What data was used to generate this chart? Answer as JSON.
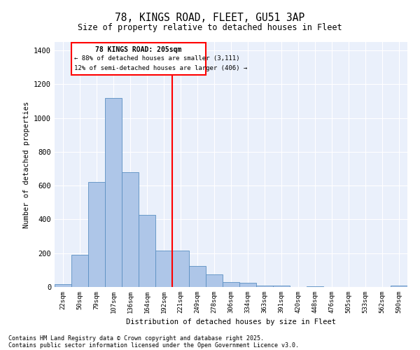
{
  "title1": "78, KINGS ROAD, FLEET, GU51 3AP",
  "title2": "Size of property relative to detached houses in Fleet",
  "xlabel": "Distribution of detached houses by size in Fleet",
  "ylabel": "Number of detached properties",
  "categories": [
    "22sqm",
    "50sqm",
    "79sqm",
    "107sqm",
    "136sqm",
    "164sqm",
    "192sqm",
    "221sqm",
    "249sqm",
    "278sqm",
    "306sqm",
    "334sqm",
    "363sqm",
    "391sqm",
    "420sqm",
    "448sqm",
    "476sqm",
    "505sqm",
    "533sqm",
    "562sqm",
    "590sqm"
  ],
  "values": [
    15,
    190,
    620,
    1120,
    680,
    425,
    215,
    215,
    125,
    75,
    28,
    25,
    10,
    10,
    0,
    5,
    0,
    0,
    0,
    0,
    10
  ],
  "bar_color": "#aec6e8",
  "bar_edge_color": "#5a8fc2",
  "vline_x_index": 6.5,
  "vline_color": "red",
  "annotation_title": "78 KINGS ROAD: 205sqm",
  "annotation_line1": "← 88% of detached houses are smaller (3,111)",
  "annotation_line2": "12% of semi-detached houses are larger (406) →",
  "annotation_box_color": "red",
  "ylim": [
    0,
    1450
  ],
  "yticks": [
    0,
    200,
    400,
    600,
    800,
    1000,
    1200,
    1400
  ],
  "background_color": "#eaf0fb",
  "grid_color": "white",
  "footer1": "Contains HM Land Registry data © Crown copyright and database right 2025.",
  "footer2": "Contains public sector information licensed under the Open Government Licence v3.0."
}
